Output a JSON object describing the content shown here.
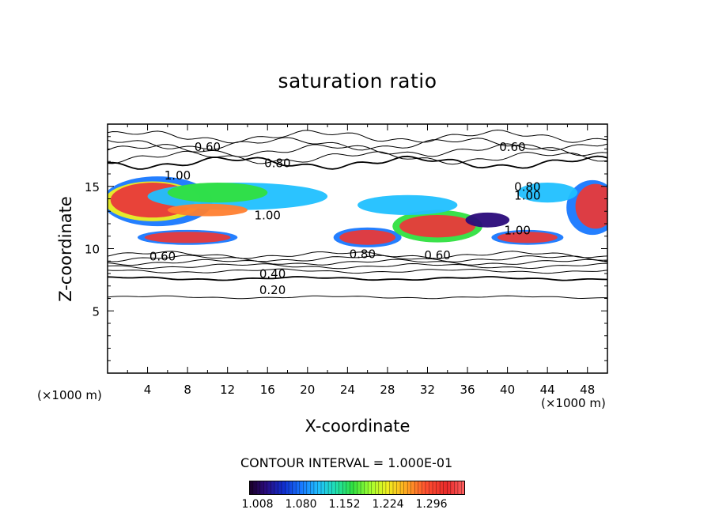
{
  "chart_data": {
    "type": "contour",
    "title": "saturation ratio",
    "xlabel": "X-coordinate",
    "ylabel": "Z-coordinate",
    "x_unit": "(×1000 m)",
    "xlim": [
      0,
      50
    ],
    "ylim": [
      0,
      20
    ],
    "xticks": [
      4,
      8,
      12,
      16,
      20,
      24,
      28,
      32,
      36,
      40,
      44,
      48
    ],
    "yticks": [
      5,
      10,
      15
    ],
    "contour_interval_label": "CONTOUR INTERVAL = 1.000E-01",
    "contour_labels": [
      {
        "text": "0.60",
        "x": 10,
        "z": 18.1
      },
      {
        "text": "0.80",
        "x": 17,
        "z": 16.8
      },
      {
        "text": "1.00",
        "x": 7,
        "z": 15.8
      },
      {
        "text": "1.00",
        "x": 16,
        "z": 12.6
      },
      {
        "text": "0.60",
        "x": 40.5,
        "z": 18.1
      },
      {
        "text": "0.80",
        "x": 42,
        "z": 14.9
      },
      {
        "text": "1.00",
        "x": 42,
        "z": 14.2
      },
      {
        "text": "1.00",
        "x": 41,
        "z": 11.4
      },
      {
        "text": "0.60",
        "x": 5.5,
        "z": 9.3
      },
      {
        "text": "0.80",
        "x": 25.5,
        "z": 9.5
      },
      {
        "text": "0.60",
        "x": 33,
        "z": 9.4
      },
      {
        "text": "0.40",
        "x": 16.5,
        "z": 7.9
      },
      {
        "text": "0.20",
        "x": 16.5,
        "z": 6.6
      }
    ],
    "colorbar": {
      "ticks": [
        "1.008",
        "1.080",
        "1.152",
        "1.224",
        "1.296"
      ],
      "colors": [
        "#1a0028",
        "#1030d0",
        "#20c0ff",
        "#30e040",
        "#f0f020",
        "#ff5030",
        "#e82a2a"
      ]
    }
  }
}
